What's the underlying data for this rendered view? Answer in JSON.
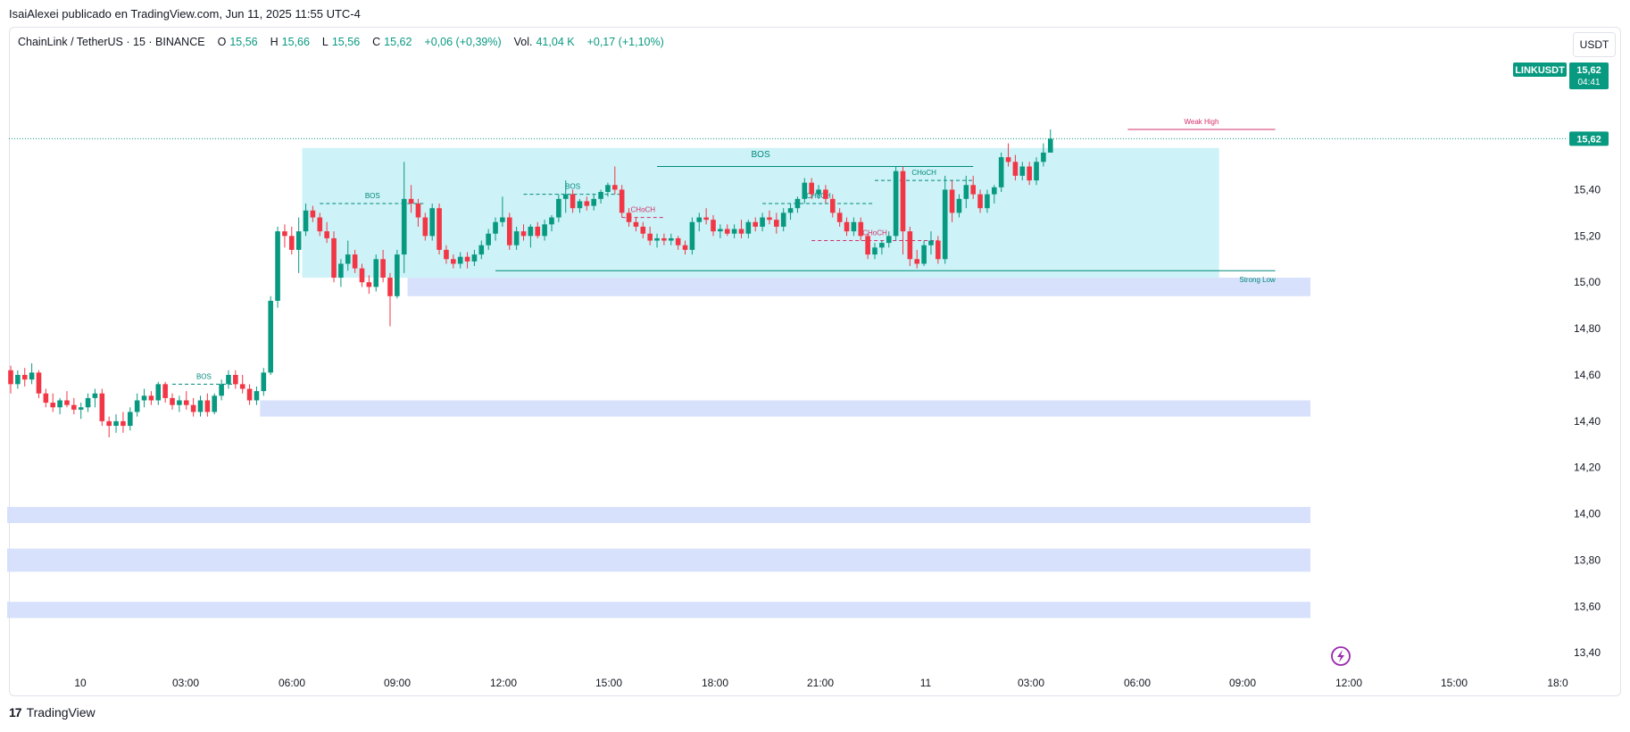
{
  "header": {
    "publish_line": "IsaiAlexei publicado en TradingView.com, Jun 11, 2025 11:55 UTC-4"
  },
  "legend": {
    "symbol": "ChainLink / TetherUS · 15 · BINANCE",
    "o_label": "O",
    "o_value": "15,56",
    "h_label": "H",
    "h_value": "15,66",
    "l_label": "L",
    "l_value": "15,56",
    "c_label": "C",
    "c_value": "15,62",
    "change": "+0,06 (+0,39%)",
    "vol_label": "Vol.",
    "vol_value": "41,04 K",
    "vol_change": "+0,17 (+1,10%)"
  },
  "currency_button": "USDT",
  "footer": {
    "brand": "TradingView"
  },
  "colors": {
    "up": "#089981",
    "down": "#f23645",
    "zone_cyan": "#b2ebf2",
    "zone_blue": "#d0dcfb",
    "annotation_teal": "#00897b",
    "annotation_red": "#d32f6a"
  },
  "chart_data": {
    "type": "candlestick",
    "symbol": "LINKUSDT",
    "interval": "15",
    "y_ticks": [
      "15,40",
      "15,20",
      "15,00",
      "14,80",
      "14,60",
      "14,40",
      "14,20",
      "14,00",
      "13,80",
      "13,60",
      "13,40"
    ],
    "y_tick_values": [
      15.4,
      15.2,
      15.0,
      14.8,
      14.6,
      14.4,
      14.2,
      14.0,
      13.8,
      13.6,
      13.4
    ],
    "x_ticks": [
      "10",
      "03:00",
      "06:00",
      "09:00",
      "12:00",
      "15:00",
      "18:00",
      "21:00",
      "11",
      "03:00",
      "06:00",
      "09:00",
      "12:00",
      "15:00",
      "18:0"
    ],
    "y_range": [
      13.32,
      15.98
    ],
    "last_price": 15.62,
    "price_label": "15,62",
    "ticker_label": "LINKUSDT",
    "countdown": "04:41",
    "candles": [
      {
        "o": 14.62,
        "h": 14.64,
        "l": 14.52,
        "c": 14.56
      },
      {
        "o": 14.56,
        "h": 14.62,
        "l": 14.54,
        "c": 14.6
      },
      {
        "o": 14.6,
        "h": 14.63,
        "l": 14.55,
        "c": 14.58
      },
      {
        "o": 14.58,
        "h": 14.65,
        "l": 14.56,
        "c": 14.61
      },
      {
        "o": 14.61,
        "h": 14.62,
        "l": 14.5,
        "c": 14.52
      },
      {
        "o": 14.52,
        "h": 14.54,
        "l": 14.46,
        "c": 14.48
      },
      {
        "o": 14.48,
        "h": 14.52,
        "l": 14.44,
        "c": 14.46
      },
      {
        "o": 14.46,
        "h": 14.5,
        "l": 14.43,
        "c": 14.49
      },
      {
        "o": 14.49,
        "h": 14.53,
        "l": 14.46,
        "c": 14.47
      },
      {
        "o": 14.47,
        "h": 14.5,
        "l": 14.43,
        "c": 14.45
      },
      {
        "o": 14.45,
        "h": 14.48,
        "l": 14.41,
        "c": 14.46
      },
      {
        "o": 14.46,
        "h": 14.52,
        "l": 14.44,
        "c": 14.5
      },
      {
        "o": 14.5,
        "h": 14.54,
        "l": 14.46,
        "c": 14.52
      },
      {
        "o": 14.52,
        "h": 14.54,
        "l": 14.38,
        "c": 14.4
      },
      {
        "o": 14.4,
        "h": 14.42,
        "l": 14.33,
        "c": 14.38
      },
      {
        "o": 14.38,
        "h": 14.43,
        "l": 14.35,
        "c": 14.4
      },
      {
        "o": 14.4,
        "h": 14.44,
        "l": 14.35,
        "c": 14.38
      },
      {
        "o": 14.38,
        "h": 14.46,
        "l": 14.36,
        "c": 14.44
      },
      {
        "o": 14.44,
        "h": 14.52,
        "l": 14.42,
        "c": 14.49
      },
      {
        "o": 14.49,
        "h": 14.54,
        "l": 14.46,
        "c": 14.51
      },
      {
        "o": 14.51,
        "h": 14.53,
        "l": 14.47,
        "c": 14.49
      },
      {
        "o": 14.49,
        "h": 14.57,
        "l": 14.47,
        "c": 14.56
      },
      {
        "o": 14.56,
        "h": 14.57,
        "l": 14.48,
        "c": 14.5
      },
      {
        "o": 14.5,
        "h": 14.52,
        "l": 14.45,
        "c": 14.47
      },
      {
        "o": 14.47,
        "h": 14.51,
        "l": 14.44,
        "c": 14.49
      },
      {
        "o": 14.49,
        "h": 14.53,
        "l": 14.45,
        "c": 14.47
      },
      {
        "o": 14.47,
        "h": 14.5,
        "l": 14.42,
        "c": 14.44
      },
      {
        "o": 14.44,
        "h": 14.51,
        "l": 14.42,
        "c": 14.49
      },
      {
        "o": 14.49,
        "h": 14.52,
        "l": 14.42,
        "c": 14.44
      },
      {
        "o": 14.44,
        "h": 14.52,
        "l": 14.43,
        "c": 14.51
      },
      {
        "o": 14.51,
        "h": 14.58,
        "l": 14.49,
        "c": 14.56
      },
      {
        "o": 14.56,
        "h": 14.62,
        "l": 14.54,
        "c": 14.6
      },
      {
        "o": 14.6,
        "h": 14.62,
        "l": 14.54,
        "c": 14.56
      },
      {
        "o": 14.56,
        "h": 14.6,
        "l": 14.52,
        "c": 14.54
      },
      {
        "o": 14.54,
        "h": 14.56,
        "l": 14.47,
        "c": 14.49
      },
      {
        "o": 14.49,
        "h": 14.55,
        "l": 14.47,
        "c": 14.53
      },
      {
        "o": 14.53,
        "h": 14.63,
        "l": 14.51,
        "c": 14.61
      },
      {
        "o": 14.61,
        "h": 14.94,
        "l": 14.6,
        "c": 14.92
      },
      {
        "o": 14.92,
        "h": 15.24,
        "l": 14.89,
        "c": 15.22
      },
      {
        "o": 15.22,
        "h": 15.25,
        "l": 15.15,
        "c": 15.2
      },
      {
        "o": 15.2,
        "h": 15.24,
        "l": 15.12,
        "c": 15.14
      },
      {
        "o": 15.14,
        "h": 15.28,
        "l": 15.04,
        "c": 15.22
      },
      {
        "o": 15.22,
        "h": 15.34,
        "l": 15.2,
        "c": 15.31
      },
      {
        "o": 15.31,
        "h": 15.33,
        "l": 15.26,
        "c": 15.28
      },
      {
        "o": 15.28,
        "h": 15.3,
        "l": 15.2,
        "c": 15.22
      },
      {
        "o": 15.22,
        "h": 15.26,
        "l": 15.17,
        "c": 15.19
      },
      {
        "o": 15.19,
        "h": 15.22,
        "l": 15.0,
        "c": 15.02
      },
      {
        "o": 15.02,
        "h": 15.1,
        "l": 14.98,
        "c": 15.08
      },
      {
        "o": 15.08,
        "h": 15.18,
        "l": 15.05,
        "c": 15.12
      },
      {
        "o": 15.12,
        "h": 15.14,
        "l": 15.04,
        "c": 15.06
      },
      {
        "o": 15.06,
        "h": 15.08,
        "l": 14.98,
        "c": 15.0
      },
      {
        "o": 15.0,
        "h": 15.03,
        "l": 14.95,
        "c": 14.98
      },
      {
        "o": 14.98,
        "h": 15.12,
        "l": 14.96,
        "c": 15.1
      },
      {
        "o": 15.1,
        "h": 15.14,
        "l": 15.0,
        "c": 15.02
      },
      {
        "o": 15.02,
        "h": 15.04,
        "l": 14.81,
        "c": 14.94
      },
      {
        "o": 14.94,
        "h": 15.14,
        "l": 14.93,
        "c": 15.12
      },
      {
        "o": 15.12,
        "h": 15.52,
        "l": 15.04,
        "c": 15.36
      },
      {
        "o": 15.36,
        "h": 15.42,
        "l": 15.3,
        "c": 15.34
      },
      {
        "o": 15.34,
        "h": 15.36,
        "l": 15.24,
        "c": 15.28
      },
      {
        "o": 15.28,
        "h": 15.3,
        "l": 15.18,
        "c": 15.2
      },
      {
        "o": 15.2,
        "h": 15.34,
        "l": 15.18,
        "c": 15.32
      },
      {
        "o": 15.32,
        "h": 15.34,
        "l": 15.12,
        "c": 15.14
      },
      {
        "o": 15.14,
        "h": 15.16,
        "l": 15.08,
        "c": 15.1
      },
      {
        "o": 15.1,
        "h": 15.12,
        "l": 15.06,
        "c": 15.08
      },
      {
        "o": 15.08,
        "h": 15.13,
        "l": 15.06,
        "c": 15.11
      },
      {
        "o": 15.11,
        "h": 15.13,
        "l": 15.06,
        "c": 15.09
      },
      {
        "o": 15.09,
        "h": 15.14,
        "l": 15.07,
        "c": 15.12
      },
      {
        "o": 15.12,
        "h": 15.18,
        "l": 15.1,
        "c": 15.16
      },
      {
        "o": 15.16,
        "h": 15.23,
        "l": 15.14,
        "c": 15.21
      },
      {
        "o": 15.21,
        "h": 15.28,
        "l": 15.18,
        "c": 15.26
      },
      {
        "o": 15.26,
        "h": 15.37,
        "l": 15.24,
        "c": 15.28
      },
      {
        "o": 15.28,
        "h": 15.3,
        "l": 15.14,
        "c": 15.16
      },
      {
        "o": 15.16,
        "h": 15.24,
        "l": 15.14,
        "c": 15.22
      },
      {
        "o": 15.22,
        "h": 15.25,
        "l": 15.18,
        "c": 15.2
      },
      {
        "o": 15.2,
        "h": 15.25,
        "l": 15.15,
        "c": 15.24
      },
      {
        "o": 15.24,
        "h": 15.26,
        "l": 15.19,
        "c": 15.2
      },
      {
        "o": 15.2,
        "h": 15.27,
        "l": 15.18,
        "c": 15.25
      },
      {
        "o": 15.25,
        "h": 15.29,
        "l": 15.22,
        "c": 15.28
      },
      {
        "o": 15.28,
        "h": 15.38,
        "l": 15.26,
        "c": 15.36
      },
      {
        "o": 15.36,
        "h": 15.44,
        "l": 15.3,
        "c": 15.38
      },
      {
        "o": 15.38,
        "h": 15.4,
        "l": 15.3,
        "c": 15.32
      },
      {
        "o": 15.32,
        "h": 15.36,
        "l": 15.3,
        "c": 15.35
      },
      {
        "o": 15.35,
        "h": 15.37,
        "l": 15.31,
        "c": 15.33
      },
      {
        "o": 15.33,
        "h": 15.38,
        "l": 15.31,
        "c": 15.36
      },
      {
        "o": 15.36,
        "h": 15.4,
        "l": 15.34,
        "c": 15.39
      },
      {
        "o": 15.39,
        "h": 15.43,
        "l": 15.37,
        "c": 15.42
      },
      {
        "o": 15.42,
        "h": 15.5,
        "l": 15.38,
        "c": 15.4
      },
      {
        "o": 15.4,
        "h": 15.42,
        "l": 15.28,
        "c": 15.3
      },
      {
        "o": 15.3,
        "h": 15.32,
        "l": 15.24,
        "c": 15.26
      },
      {
        "o": 15.26,
        "h": 15.28,
        "l": 15.22,
        "c": 15.24
      },
      {
        "o": 15.24,
        "h": 15.26,
        "l": 15.19,
        "c": 15.21
      },
      {
        "o": 15.21,
        "h": 15.24,
        "l": 15.16,
        "c": 15.18
      },
      {
        "o": 15.18,
        "h": 15.21,
        "l": 15.15,
        "c": 15.19
      },
      {
        "o": 15.19,
        "h": 15.21,
        "l": 15.16,
        "c": 15.18
      },
      {
        "o": 15.18,
        "h": 15.21,
        "l": 15.16,
        "c": 15.19
      },
      {
        "o": 15.19,
        "h": 15.2,
        "l": 15.14,
        "c": 15.16
      },
      {
        "o": 15.16,
        "h": 15.18,
        "l": 15.12,
        "c": 15.14
      },
      {
        "o": 15.14,
        "h": 15.28,
        "l": 15.12,
        "c": 15.26
      },
      {
        "o": 15.26,
        "h": 15.3,
        "l": 15.22,
        "c": 15.28
      },
      {
        "o": 15.28,
        "h": 15.32,
        "l": 15.25,
        "c": 15.27
      },
      {
        "o": 15.27,
        "h": 15.29,
        "l": 15.2,
        "c": 15.22
      },
      {
        "o": 15.22,
        "h": 15.25,
        "l": 15.19,
        "c": 15.23
      },
      {
        "o": 15.23,
        "h": 15.25,
        "l": 15.2,
        "c": 15.21
      },
      {
        "o": 15.21,
        "h": 15.25,
        "l": 15.19,
        "c": 15.23
      },
      {
        "o": 15.23,
        "h": 15.27,
        "l": 15.19,
        "c": 15.21
      },
      {
        "o": 15.21,
        "h": 15.27,
        "l": 15.19,
        "c": 15.26
      },
      {
        "o": 15.26,
        "h": 15.28,
        "l": 15.22,
        "c": 15.24
      },
      {
        "o": 15.24,
        "h": 15.3,
        "l": 15.22,
        "c": 15.28
      },
      {
        "o": 15.28,
        "h": 15.31,
        "l": 15.25,
        "c": 15.27
      },
      {
        "o": 15.27,
        "h": 15.3,
        "l": 15.21,
        "c": 15.24
      },
      {
        "o": 15.24,
        "h": 15.32,
        "l": 15.22,
        "c": 15.3
      },
      {
        "o": 15.3,
        "h": 15.34,
        "l": 15.27,
        "c": 15.32
      },
      {
        "o": 15.32,
        "h": 15.37,
        "l": 15.3,
        "c": 15.36
      },
      {
        "o": 15.36,
        "h": 15.45,
        "l": 15.34,
        "c": 15.43
      },
      {
        "o": 15.43,
        "h": 15.45,
        "l": 15.36,
        "c": 15.38
      },
      {
        "o": 15.38,
        "h": 15.42,
        "l": 15.36,
        "c": 15.4
      },
      {
        "o": 15.4,
        "h": 15.42,
        "l": 15.34,
        "c": 15.36
      },
      {
        "o": 15.36,
        "h": 15.38,
        "l": 15.28,
        "c": 15.3
      },
      {
        "o": 15.3,
        "h": 15.32,
        "l": 15.24,
        "c": 15.26
      },
      {
        "o": 15.26,
        "h": 15.28,
        "l": 15.2,
        "c": 15.22
      },
      {
        "o": 15.22,
        "h": 15.28,
        "l": 15.2,
        "c": 15.26
      },
      {
        "o": 15.26,
        "h": 15.28,
        "l": 15.18,
        "c": 15.2
      },
      {
        "o": 15.2,
        "h": 15.21,
        "l": 15.1,
        "c": 15.12
      },
      {
        "o": 15.12,
        "h": 15.17,
        "l": 15.1,
        "c": 15.15
      },
      {
        "o": 15.15,
        "h": 15.18,
        "l": 15.12,
        "c": 15.17
      },
      {
        "o": 15.17,
        "h": 15.22,
        "l": 15.15,
        "c": 15.2
      },
      {
        "o": 15.2,
        "h": 15.5,
        "l": 15.18,
        "c": 15.48
      },
      {
        "o": 15.48,
        "h": 15.5,
        "l": 15.12,
        "c": 15.22
      },
      {
        "o": 15.22,
        "h": 15.24,
        "l": 15.07,
        "c": 15.1
      },
      {
        "o": 15.1,
        "h": 15.14,
        "l": 15.06,
        "c": 15.08
      },
      {
        "o": 15.08,
        "h": 15.18,
        "l": 15.07,
        "c": 15.16
      },
      {
        "o": 15.16,
        "h": 15.22,
        "l": 15.12,
        "c": 15.18
      },
      {
        "o": 15.18,
        "h": 15.2,
        "l": 15.08,
        "c": 15.1
      },
      {
        "o": 15.1,
        "h": 15.46,
        "l": 15.08,
        "c": 15.4
      },
      {
        "o": 15.4,
        "h": 15.44,
        "l": 15.26,
        "c": 15.3
      },
      {
        "o": 15.3,
        "h": 15.38,
        "l": 15.28,
        "c": 15.36
      },
      {
        "o": 15.36,
        "h": 15.46,
        "l": 15.32,
        "c": 15.42
      },
      {
        "o": 15.42,
        "h": 15.46,
        "l": 15.36,
        "c": 15.38
      },
      {
        "o": 15.38,
        "h": 15.4,
        "l": 15.3,
        "c": 15.32
      },
      {
        "o": 15.32,
        "h": 15.4,
        "l": 15.3,
        "c": 15.38
      },
      {
        "o": 15.38,
        "h": 15.42,
        "l": 15.34,
        "c": 15.41
      },
      {
        "o": 15.41,
        "h": 15.56,
        "l": 15.39,
        "c": 15.54
      },
      {
        "o": 15.54,
        "h": 15.6,
        "l": 15.5,
        "c": 15.52
      },
      {
        "o": 15.52,
        "h": 15.55,
        "l": 15.44,
        "c": 15.46
      },
      {
        "o": 15.46,
        "h": 15.52,
        "l": 15.44,
        "c": 15.5
      },
      {
        "o": 15.5,
        "h": 15.52,
        "l": 15.42,
        "c": 15.44
      },
      {
        "o": 15.44,
        "h": 15.54,
        "l": 15.42,
        "c": 15.52
      },
      {
        "o": 15.52,
        "h": 15.6,
        "l": 15.5,
        "c": 15.56
      },
      {
        "o": 15.56,
        "h": 15.66,
        "l": 15.56,
        "c": 15.62
      }
    ],
    "zones": [
      {
        "label": "BOS",
        "top": 15.58,
        "bottom": 15.02,
        "start": 42,
        "end": 172,
        "color": "cyan"
      },
      {
        "top": 15.02,
        "bottom": 14.94,
        "start": 57,
        "end": 185,
        "color": "blue"
      },
      {
        "top": 14.49,
        "bottom": 14.42,
        "start": 36,
        "end": 185,
        "color": "blue"
      },
      {
        "top": 14.03,
        "bottom": 13.96,
        "start": 0,
        "end": 185,
        "color": "blue"
      },
      {
        "top": 13.85,
        "bottom": 13.75,
        "start": 0,
        "end": 185,
        "color": "blue"
      },
      {
        "top": 13.62,
        "bottom": 13.55,
        "start": 0,
        "end": 185,
        "color": "blue"
      }
    ],
    "annotations": [
      {
        "text": "BOS",
        "y": 14.56,
        "x1": 23,
        "x2": 32,
        "dashed": true,
        "color": "teal"
      },
      {
        "text": "BOS",
        "y": 15.34,
        "x1": 44,
        "x2": 59,
        "dashed": true,
        "color": "teal"
      },
      {
        "text": "BOS",
        "y": 15.38,
        "x1": 73,
        "x2": 87,
        "dashed": true,
        "color": "teal"
      },
      {
        "text": "CHoCH",
        "y": 15.28,
        "x1": 87,
        "x2": 93,
        "dashed": true,
        "color": "red"
      },
      {
        "text": "CHoCH",
        "y": 15.34,
        "x1": 107,
        "x2": 123,
        "dashed": true,
        "color": "teal"
      },
      {
        "text": "CHoCH",
        "y": 15.18,
        "x1": 114,
        "x2": 132,
        "dashed": true,
        "color": "red"
      },
      {
        "text": "CHoCH",
        "y": 15.44,
        "x1": 123,
        "x2": 137,
        "dashed": true,
        "color": "teal"
      },
      {
        "text": "",
        "y": 15.5,
        "x1": 92,
        "x2": 137,
        "dashed": false,
        "color": "teal"
      },
      {
        "text": "Strong Low",
        "y": 15.05,
        "x1": 69,
        "x2": 180,
        "dashed": false,
        "color": "teal"
      },
      {
        "text": "Weak High",
        "y": 15.66,
        "x1": 159,
        "x2": 180,
        "dashed": false,
        "color": "red"
      }
    ]
  }
}
